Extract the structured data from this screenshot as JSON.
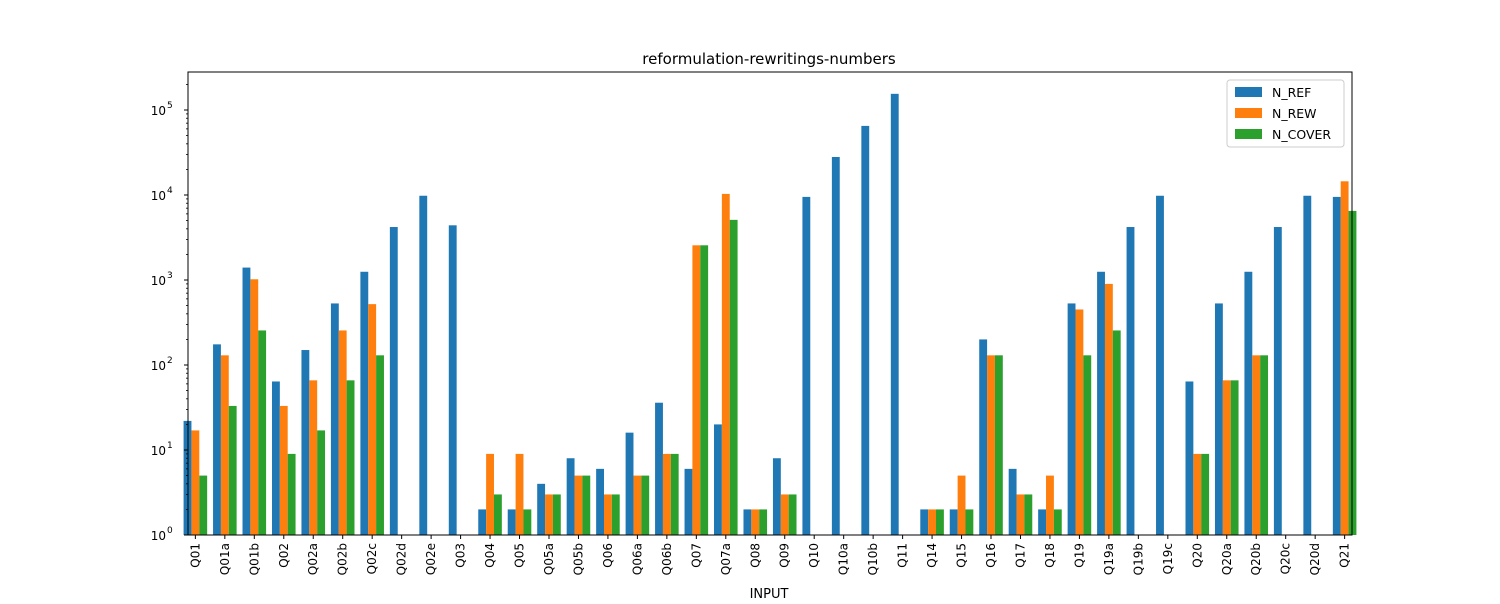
{
  "chart_data": {
    "type": "bar",
    "title": "reformulation-rewritings-numbers",
    "xlabel": "INPUT",
    "ylabel": "",
    "yscale": "log",
    "ylim": [
      1,
      280000
    ],
    "grid": false,
    "legend_position": "top-right",
    "categories": [
      "Q01",
      "Q01a",
      "Q01b",
      "Q02",
      "Q02a",
      "Q02b",
      "Q02c",
      "Q02d",
      "Q02e",
      "Q03",
      "Q04",
      "Q05",
      "Q05a",
      "Q05b",
      "Q06",
      "Q06a",
      "Q06b",
      "Q07",
      "Q07a",
      "Q08",
      "Q09",
      "Q10",
      "Q10a",
      "Q10b",
      "Q11",
      "Q14",
      "Q15",
      "Q16",
      "Q17",
      "Q18",
      "Q19",
      "Q19a",
      "Q19b",
      "Q19c",
      "Q20",
      "Q20a",
      "Q20b",
      "Q20c",
      "Q20d",
      "Q21"
    ],
    "yticks": [
      {
        "value": 1,
        "base": "10",
        "exp": "0"
      },
      {
        "value": 10,
        "base": "10",
        "exp": "1"
      },
      {
        "value": 100,
        "base": "10",
        "exp": "2"
      },
      {
        "value": 1000,
        "base": "10",
        "exp": "3"
      },
      {
        "value": 10000,
        "base": "10",
        "exp": "4"
      },
      {
        "value": 100000,
        "base": "10",
        "exp": "5"
      }
    ],
    "series": [
      {
        "name": "N_REF",
        "color": "#1f77b4",
        "values": [
          22,
          175,
          1400,
          64,
          150,
          530,
          1250,
          4200,
          9800,
          4400,
          2,
          2,
          4,
          8,
          6,
          16,
          36,
          6,
          20,
          2,
          8,
          9500,
          28000,
          65000,
          155000,
          2,
          2,
          200,
          6,
          2,
          530,
          1250,
          4200,
          9800,
          64,
          530,
          1250,
          4200,
          9800,
          9500
        ]
      },
      {
        "name": "N_REW",
        "color": "#ff7f0e",
        "values": [
          17,
          130,
          1020,
          33,
          66,
          255,
          520,
          null,
          null,
          null,
          9,
          9,
          3,
          5,
          3,
          5,
          9,
          2560,
          10300,
          2,
          3,
          null,
          null,
          null,
          null,
          2,
          5,
          130,
          3,
          5,
          450,
          900,
          null,
          null,
          9,
          66,
          130,
          null,
          null,
          14500
        ]
      },
      {
        "name": "N_COVER",
        "color": "#2ca02c",
        "values": [
          5,
          33,
          255,
          9,
          17,
          66,
          130,
          null,
          null,
          null,
          3,
          2,
          3,
          5,
          3,
          5,
          9,
          2560,
          5100,
          2,
          3,
          null,
          null,
          null,
          null,
          2,
          2,
          130,
          3,
          2,
          130,
          255,
          null,
          null,
          9,
          66,
          130,
          null,
          null,
          6500
        ]
      }
    ]
  }
}
